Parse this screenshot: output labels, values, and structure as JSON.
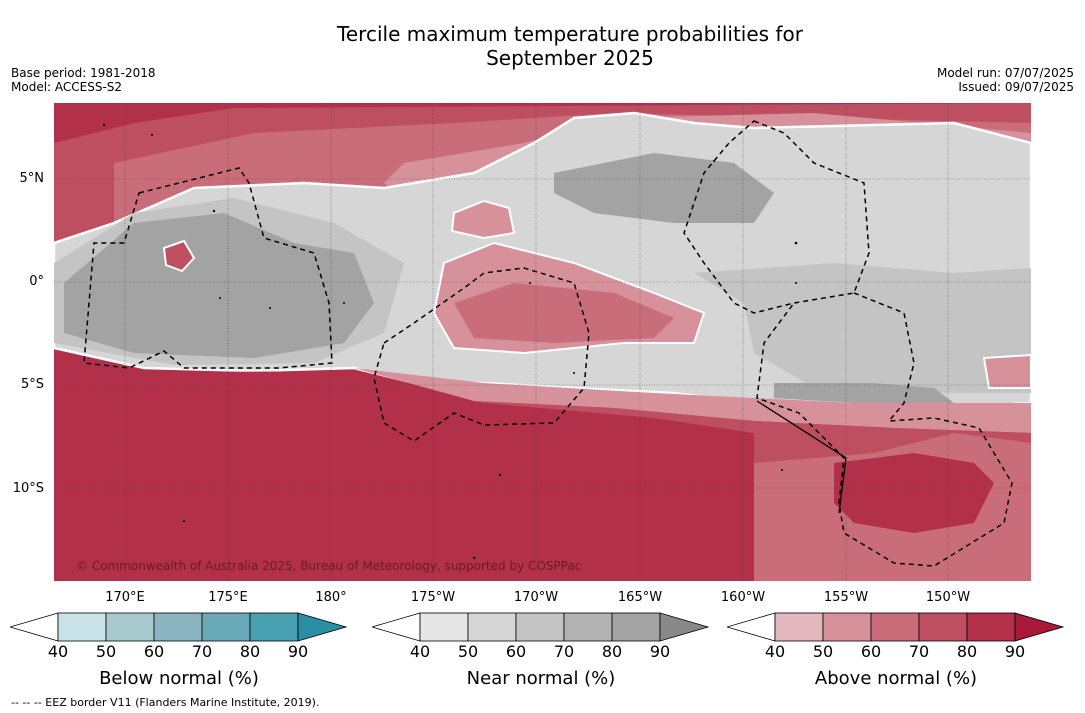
{
  "title_line1": "Tercile maximum temperature probabilities for",
  "title_line2": "September 2025",
  "meta": {
    "base_period": "Base period: 1981-2018",
    "model": "Model: ACCESS-S2",
    "model_run": "Model run: 07/07/2025",
    "issued": "Issued: 09/07/2025"
  },
  "lat_labels": [
    "5°N",
    "0°",
    "5°S",
    "10°S"
  ],
  "lon_labels": [
    "170°E",
    "175°E",
    "180°",
    "175°W",
    "170°W",
    "165°W",
    "160°W",
    "155°W",
    "150°W"
  ],
  "copyright": "© Commonwealth of Australia 2025, Bureau of Meteorology, supported by COSPPac",
  "colorbars": [
    {
      "name": "below-normal",
      "title": "Below normal (%)",
      "ticks": [
        "40",
        "50",
        "60",
        "70",
        "80",
        "90"
      ],
      "colors": [
        "#ffffff",
        "#c8e2e8",
        "#a8cacf",
        "#8ab5c0",
        "#6aaab8",
        "#48a0b0",
        "#2a8fa4"
      ]
    },
    {
      "name": "near-normal",
      "title": "Near normal (%)",
      "ticks": [
        "40",
        "50",
        "60",
        "70",
        "80",
        "90"
      ],
      "colors": [
        "#ffffff",
        "#e6e6e6",
        "#d6d6d6",
        "#c4c4c4",
        "#b2b2b2",
        "#a3a3a3",
        "#888888"
      ]
    },
    {
      "name": "above-normal",
      "title": "Above normal (%)",
      "ticks": [
        "40",
        "50",
        "60",
        "70",
        "80",
        "90"
      ],
      "colors": [
        "#ffffff",
        "#e4b8bf",
        "#d6919b",
        "#c96d7a",
        "#be4f60",
        "#b3304a",
        "#a8193a"
      ]
    }
  ],
  "footnote": "--  --  -- EEZ border V11 (Flanders Marine Institute, 2019)."
}
